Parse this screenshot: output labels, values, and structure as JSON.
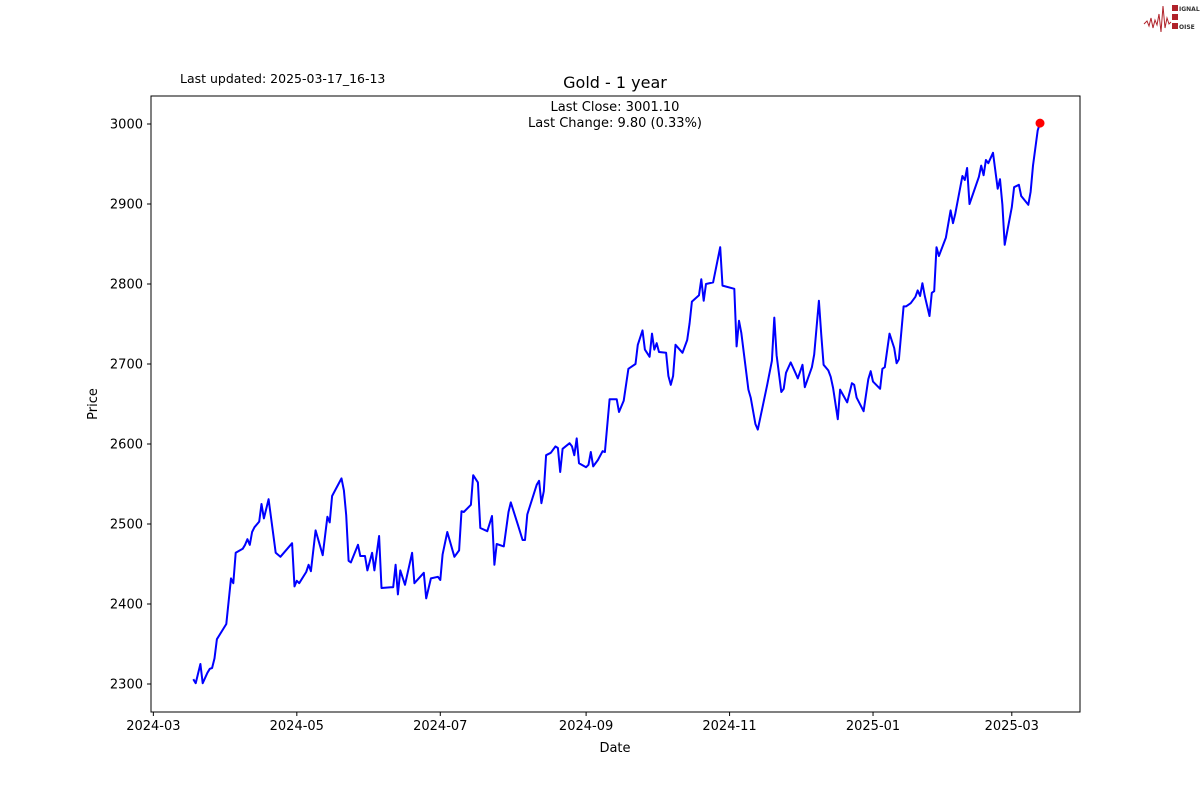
{
  "header": {
    "last_updated": "Last updated: 2025-03-17_16-13"
  },
  "logo": {
    "lettering": [
      "SIGNAL",
      "2",
      "NOISE"
    ],
    "color": "#b0222a"
  },
  "chart_data": {
    "type": "line",
    "title": "Gold - 1 year",
    "annotation_lines": [
      "Last Close: 3001.10",
      "Last Change: 9.80 (0.33%)"
    ],
    "xlabel": "Date",
    "ylabel": "Price",
    "xlim": [
      "2024-02-29",
      "2025-03-30"
    ],
    "ylim": [
      2265,
      3035
    ],
    "grid": false,
    "line_color": "#0000ff",
    "marker_color": "#ff0000",
    "xticks": [
      "2024-03",
      "2024-05",
      "2024-07",
      "2024-09",
      "2024-11",
      "2025-01",
      "2025-03"
    ],
    "yticks": [
      2300,
      2400,
      2500,
      2600,
      2700,
      2800,
      2900,
      3000
    ],
    "last_point": {
      "x": "2025-03-13",
      "y": 3001.1
    },
    "x": [
      "2024-03-18",
      "2024-03-19",
      "2024-03-21",
      "2024-03-22",
      "2024-03-24",
      "2024-03-25",
      "2024-03-26",
      "2024-03-27",
      "2024-03-28",
      "2024-04-01",
      "2024-04-03",
      "2024-04-04",
      "2024-04-05",
      "2024-04-08",
      "2024-04-09",
      "2024-04-10",
      "2024-04-11",
      "2024-04-12",
      "2024-04-13",
      "2024-04-15",
      "2024-04-16",
      "2024-04-17",
      "2024-04-19",
      "2024-04-22",
      "2024-04-24",
      "2024-04-29",
      "2024-04-30",
      "2024-05-01",
      "2024-05-02",
      "2024-05-05",
      "2024-05-06",
      "2024-05-07",
      "2024-05-09",
      "2024-05-12",
      "2024-05-14",
      "2024-05-15",
      "2024-05-16",
      "2024-05-20",
      "2024-05-21",
      "2024-05-22",
      "2024-05-23",
      "2024-05-24",
      "2024-05-27",
      "2024-05-28",
      "2024-05-30",
      "2024-05-31",
      "2024-06-02",
      "2024-06-03",
      "2024-06-05",
      "2024-06-06",
      "2024-06-10",
      "2024-06-11",
      "2024-06-12",
      "2024-06-13",
      "2024-06-14",
      "2024-06-16",
      "2024-06-19",
      "2024-06-20",
      "2024-06-24",
      "2024-06-25",
      "2024-06-27",
      "2024-06-30",
      "2024-07-01",
      "2024-07-02",
      "2024-07-04",
      "2024-07-07",
      "2024-07-09",
      "2024-07-10",
      "2024-07-11",
      "2024-07-14",
      "2024-07-15",
      "2024-07-17",
      "2024-07-18",
      "2024-07-21",
      "2024-07-23",
      "2024-07-24",
      "2024-07-25",
      "2024-07-28",
      "2024-07-30",
      "2024-07-31",
      "2024-08-03",
      "2024-08-05",
      "2024-08-06",
      "2024-08-07",
      "2024-08-11",
      "2024-08-12",
      "2024-08-13",
      "2024-08-14",
      "2024-08-15",
      "2024-08-17",
      "2024-08-19",
      "2024-08-20",
      "2024-08-21",
      "2024-08-22",
      "2024-08-25",
      "2024-08-26",
      "2024-08-27",
      "2024-08-28",
      "2024-08-29",
      "2024-09-01",
      "2024-09-02",
      "2024-09-03",
      "2024-09-04",
      "2024-09-06",
      "2024-09-08",
      "2024-09-09",
      "2024-09-11",
      "2024-09-14",
      "2024-09-15",
      "2024-09-17",
      "2024-09-19",
      "2024-09-22",
      "2024-09-23",
      "2024-09-25",
      "2024-09-26",
      "2024-09-28",
      "2024-09-29",
      "2024-09-30",
      "2024-10-01",
      "2024-10-02",
      "2024-10-05",
      "2024-10-06",
      "2024-10-07",
      "2024-10-08",
      "2024-10-09",
      "2024-10-12",
      "2024-10-14",
      "2024-10-15",
      "2024-10-16",
      "2024-10-19",
      "2024-10-20",
      "2024-10-21",
      "2024-10-22",
      "2024-10-25",
      "2024-10-28",
      "2024-10-29",
      "2024-11-03",
      "2024-11-04",
      "2024-11-05",
      "2024-11-06",
      "2024-11-09",
      "2024-11-10",
      "2024-11-12",
      "2024-11-13",
      "2024-11-17",
      "2024-11-19",
      "2024-11-20",
      "2024-11-21",
      "2024-11-23",
      "2024-11-24",
      "2024-11-25",
      "2024-11-27",
      "2024-11-29",
      "2024-11-30",
      "2024-12-02",
      "2024-12-03",
      "2024-12-06",
      "2024-12-07",
      "2024-12-09",
      "2024-12-10",
      "2024-12-11",
      "2024-12-13",
      "2024-12-14",
      "2024-12-15",
      "2024-12-17",
      "2024-12-18",
      "2024-12-21",
      "2024-12-23",
      "2024-12-24",
      "2024-12-25",
      "2024-12-28",
      "2024-12-30",
      "2024-12-31",
      "2025-01-01",
      "2025-01-04",
      "2025-01-05",
      "2025-01-06",
      "2025-01-08",
      "2025-01-10",
      "2025-01-11",
      "2025-01-12",
      "2025-01-14",
      "2025-01-15",
      "2025-01-17",
      "2025-01-19",
      "2025-01-20",
      "2025-01-21",
      "2025-01-22",
      "2025-01-23",
      "2025-01-25",
      "2025-01-26",
      "2025-01-27",
      "2025-01-28",
      "2025-01-29",
      "2025-02-01",
      "2025-02-03",
      "2025-02-04",
      "2025-02-05",
      "2025-02-08",
      "2025-02-09",
      "2025-02-10",
      "2025-02-11",
      "2025-02-15",
      "2025-02-16",
      "2025-02-17",
      "2025-02-18",
      "2025-02-19",
      "2025-02-21",
      "2025-02-23",
      "2025-02-24",
      "2025-02-25",
      "2025-02-26",
      "2025-03-01",
      "2025-03-02",
      "2025-03-04",
      "2025-03-05",
      "2025-03-08",
      "2025-03-09",
      "2025-03-10",
      "2025-03-12",
      "2025-03-13"
    ],
    "series": [
      {
        "values": [
          2306,
          2301,
          2325,
          2301,
          2314,
          2319,
          2320,
          2332,
          2356,
          2375,
          2432,
          2426,
          2464,
          2469,
          2474,
          2481,
          2474,
          2490,
          2496,
          2503,
          2525,
          2507,
          2531,
          2464,
          2459,
          2476,
          2422,
          2429,
          2426,
          2440,
          2449,
          2441,
          2492,
          2461,
          2509,
          2502,
          2535,
          2557,
          2542,
          2511,
          2454,
          2452,
          2474,
          2460,
          2460,
          2442,
          2464,
          2442,
          2485,
          2420,
          2421,
          2421,
          2449,
          2412,
          2442,
          2424,
          2464,
          2426,
          2439,
          2407,
          2432,
          2434,
          2430,
          2462,
          2490,
          2459,
          2467,
          2516,
          2515,
          2524,
          2561,
          2552,
          2495,
          2491,
          2510,
          2449,
          2475,
          2472,
          2515,
          2527,
          2499,
          2480,
          2480,
          2512,
          2549,
          2554,
          2526,
          2541,
          2586,
          2589,
          2597,
          2595,
          2565,
          2594,
          2601,
          2597,
          2586,
          2607,
          2576,
          2571,
          2574,
          2590,
          2572,
          2580,
          2591,
          2590,
          2656,
          2656,
          2640,
          2654,
          2694,
          2700,
          2724,
          2742,
          2718,
          2709,
          2738,
          2718,
          2726,
          2715,
          2714,
          2685,
          2674,
          2685,
          2724,
          2714,
          2730,
          2751,
          2778,
          2786,
          2806,
          2779,
          2800,
          2802,
          2846,
          2798,
          2794,
          2722,
          2754,
          2739,
          2668,
          2658,
          2625,
          2618,
          2674,
          2704,
          2758,
          2711,
          2665,
          2669,
          2689,
          2702,
          2689,
          2682,
          2699,
          2671,
          2696,
          2712,
          2779,
          2736,
          2699,
          2692,
          2684,
          2670,
          2631,
          2668,
          2652,
          2676,
          2674,
          2658,
          2641,
          2681,
          2691,
          2678,
          2669,
          2694,
          2696,
          2738,
          2720,
          2701,
          2706,
          2772,
          2772,
          2776,
          2784,
          2792,
          2785,
          2801,
          2785,
          2760,
          2789,
          2791,
          2846,
          2835,
          2858,
          2892,
          2876,
          2888,
          2935,
          2930,
          2945,
          2900,
          2934,
          2948,
          2936,
          2955,
          2951,
          2964,
          2919,
          2931,
          2899,
          2849,
          2896,
          2921,
          2924,
          2910,
          2899,
          2915,
          2948,
          2992,
          3001.1
        ]
      }
    ]
  }
}
